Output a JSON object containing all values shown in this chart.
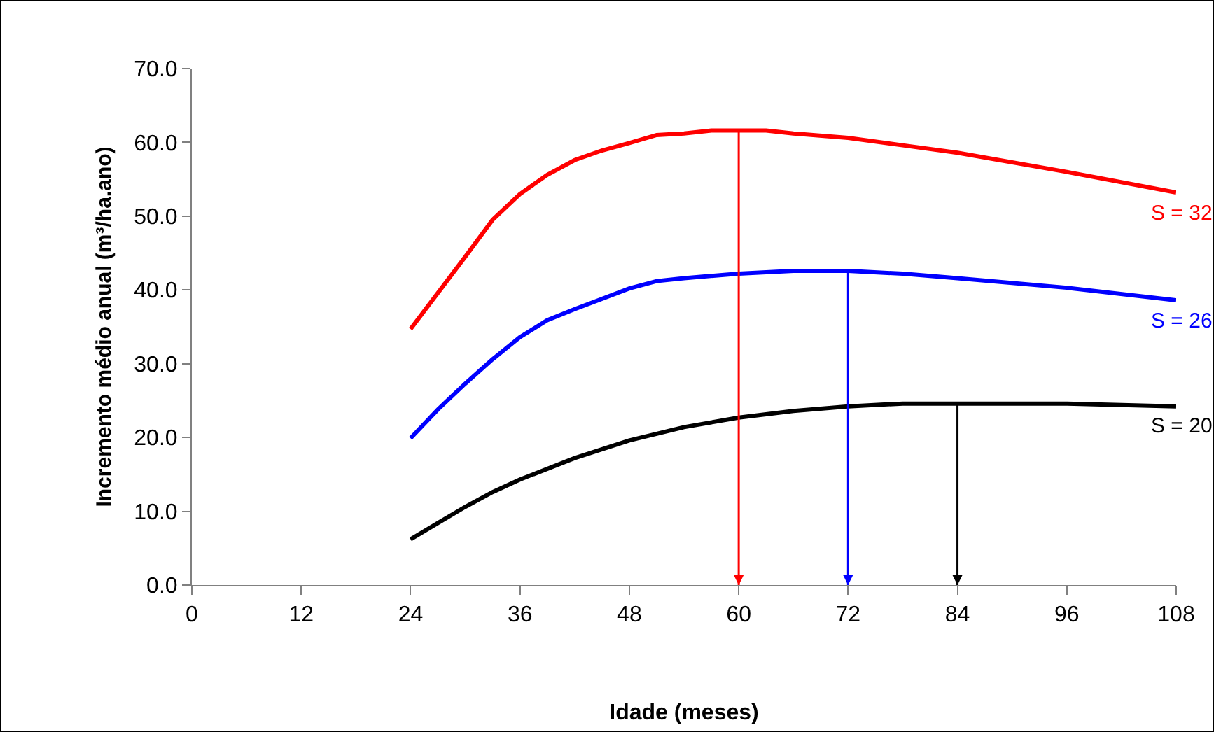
{
  "chart_data": {
    "type": "line",
    "xlabel": "Idade (meses)",
    "ylabel": "Incremento médio anual (m³/ha.ano)",
    "xlim": [
      0,
      108
    ],
    "xticks": [
      0,
      12,
      24,
      36,
      48,
      60,
      72,
      84,
      96,
      108
    ],
    "ylim": [
      0,
      70
    ],
    "yticks": [
      {
        "value": 0,
        "label": "0.0"
      },
      {
        "value": 10,
        "label": "10.0"
      },
      {
        "value": 20,
        "label": "20.0"
      },
      {
        "value": 30,
        "label": "30.0"
      },
      {
        "value": 40,
        "label": "40.0"
      },
      {
        "value": 50,
        "label": "50.0"
      },
      {
        "value": 60,
        "label": "60.0"
      },
      {
        "value": 70,
        "label": "70.0"
      }
    ],
    "grid": false,
    "legend": false,
    "marker": "none",
    "line_style": "solid",
    "series": [
      {
        "name": "S = 32",
        "color": "#ff0000",
        "x": [
          24,
          30,
          33,
          36,
          39,
          42,
          45,
          48,
          51,
          54,
          57,
          60,
          63,
          66,
          72,
          78,
          84,
          96,
          108
        ],
        "values": [
          34.7,
          44.5,
          49.5,
          53,
          55.6,
          57.6,
          58.9,
          59.9,
          61,
          61.2,
          61.6,
          61.6,
          61.6,
          61.2,
          60.6,
          59.6,
          58.6,
          56,
          53.2
        ]
      },
      {
        "name": "S = 26",
        "color": "#0000ff",
        "x": [
          24,
          27,
          30,
          33,
          36,
          39,
          42,
          45,
          48,
          51,
          54,
          60,
          66,
          72,
          78,
          84,
          96,
          108
        ],
        "values": [
          19.9,
          23.8,
          27.3,
          30.6,
          33.6,
          35.9,
          37.4,
          38.8,
          40.2,
          41.2,
          41.6,
          42.2,
          42.6,
          42.6,
          42.2,
          41.6,
          40.3,
          38.6
        ]
      },
      {
        "name": "S = 20",
        "color": "#000000",
        "x": [
          24,
          27,
          30,
          33,
          36,
          42,
          48,
          54,
          60,
          66,
          72,
          78,
          84,
          96,
          108
        ],
        "values": [
          6.2,
          8.4,
          10.6,
          12.6,
          14.3,
          17.2,
          19.6,
          21.4,
          22.7,
          23.6,
          24.2,
          24.6,
          24.6,
          24.6,
          24.2
        ]
      }
    ],
    "ref_lines": [
      {
        "axis": "x",
        "value": 60,
        "color": "#ff0000"
      },
      {
        "axis": "x",
        "value": 72,
        "color": "#0000ff"
      },
      {
        "axis": "x",
        "value": 84,
        "color": "#000000"
      }
    ]
  }
}
